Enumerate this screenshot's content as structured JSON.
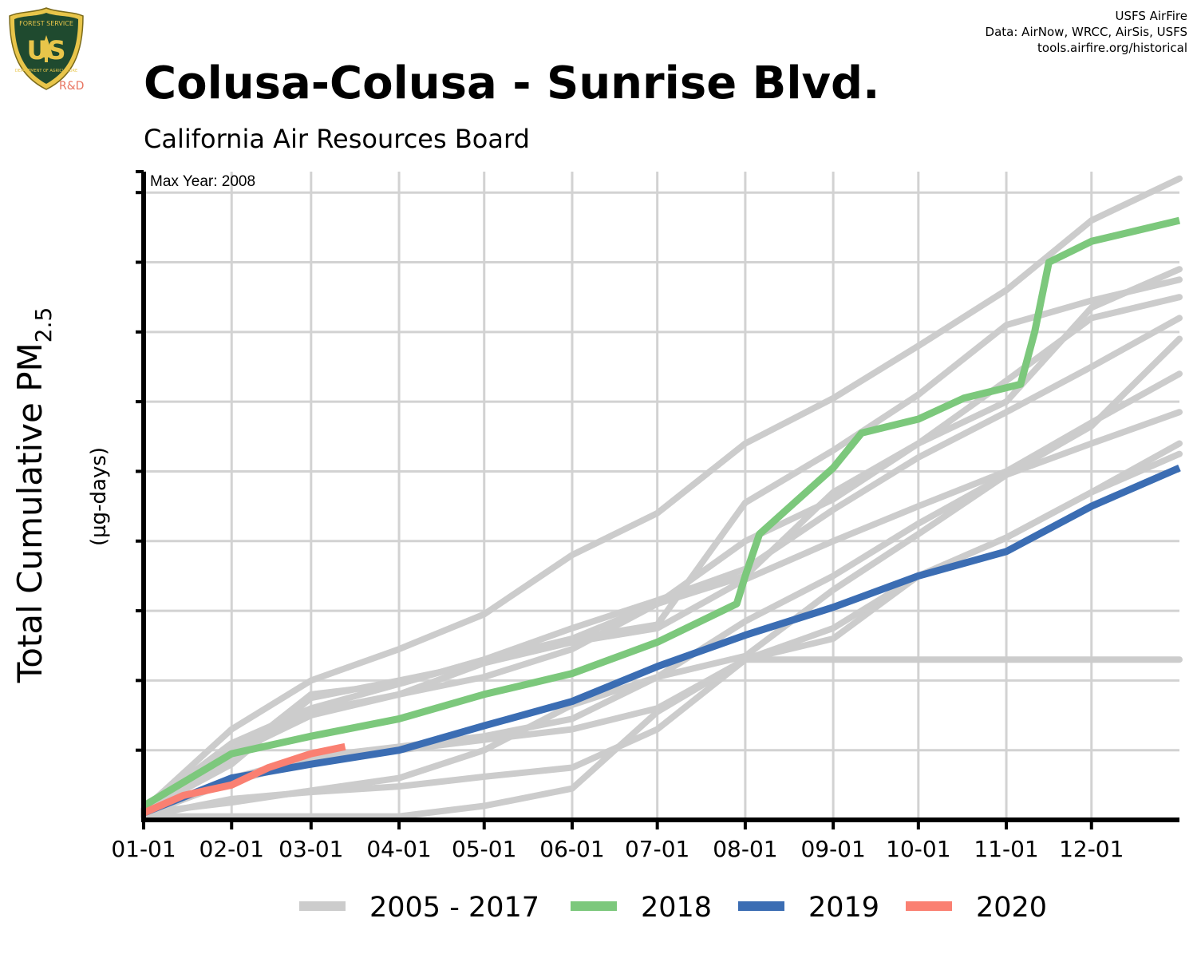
{
  "header": {
    "credit_lines": [
      "USFS AirFire",
      "Data: AirNow, WRCC, AirSis, USFS",
      "tools.airfire.org/historical"
    ],
    "title": "Colusa-Colusa - Sunrise Blvd.",
    "subtitle": "California Air Resources Board",
    "logo_text_top": "FOREST SERVICE",
    "logo_text_main": "US",
    "logo_text_bottom": "DEPARTMENT OF AGRICULTURE",
    "logo_rd": "R&D"
  },
  "colors": {
    "historical": "#cccccc",
    "y2018": "#7cc87c",
    "y2019": "#3b6db3",
    "y2020": "#fa8072",
    "logo_green": "#1f4a2f",
    "logo_gold": "#e8c54a"
  },
  "chart_data": {
    "type": "line",
    "annotation": "Max Year: 2008",
    "ylabel_main": "Total Cumulative PM",
    "ylabel_sub": "2.5",
    "ylabel_units": "(µg-days)",
    "x_tick_labels": [
      "01-01",
      "02-01",
      "03-01",
      "04-01",
      "05-01",
      "06-01",
      "07-01",
      "08-01",
      "09-01",
      "10-01",
      "11-01",
      "12-01"
    ],
    "x_tick_days": [
      1,
      32,
      60,
      91,
      121,
      152,
      182,
      213,
      244,
      274,
      305,
      335
    ],
    "xlim": [
      1,
      366
    ],
    "ylim": [
      0,
      9.3
    ],
    "y_gridlines": [
      1,
      2,
      3,
      4,
      5,
      6,
      7,
      8,
      9
    ],
    "y_axis_labels_shown": false,
    "grid": true,
    "legend_position": "bottom",
    "legend": [
      "2005 - 2017",
      "2018",
      "2019",
      "2020"
    ],
    "historical_series": [
      {
        "x": [
          1,
          32,
          60,
          91,
          121,
          152,
          182,
          213,
          244,
          274,
          305,
          335,
          366
        ],
        "y": [
          0.15,
          1.3,
          2.0,
          2.45,
          2.95,
          3.8,
          4.4,
          5.4,
          6.05,
          6.8,
          7.6,
          8.6,
          9.2
        ]
      },
      {
        "x": [
          1,
          32,
          60,
          91,
          121,
          152,
          182,
          213,
          244,
          274,
          305,
          335,
          366
        ],
        "y": [
          0.15,
          1.0,
          1.55,
          1.8,
          2.25,
          2.6,
          3.1,
          3.5,
          4.7,
          5.4,
          6.0,
          7.35,
          7.9
        ]
      },
      {
        "x": [
          1,
          32,
          60,
          91,
          121,
          152,
          182,
          213,
          244,
          274,
          305,
          335,
          366
        ],
        "y": [
          0.15,
          1.1,
          1.6,
          1.95,
          2.3,
          2.6,
          2.8,
          4.55,
          5.3,
          6.1,
          7.1,
          7.45,
          7.75
        ]
      },
      {
        "x": [
          1,
          32,
          60,
          91,
          121,
          152,
          182,
          213,
          244,
          274,
          305,
          335,
          366
        ],
        "y": [
          0.12,
          0.95,
          1.5,
          1.8,
          2.05,
          2.45,
          3.1,
          4.0,
          4.6,
          5.4,
          6.3,
          7.2,
          7.5
        ]
      },
      {
        "x": [
          1,
          32,
          60,
          91,
          121,
          152,
          182,
          213,
          244,
          274,
          305,
          335,
          366
        ],
        "y": [
          0.12,
          0.9,
          1.8,
          1.95,
          2.3,
          2.75,
          3.15,
          3.6,
          4.45,
          5.2,
          5.85,
          6.5,
          7.2
        ]
      },
      {
        "x": [
          1,
          32,
          60,
          91,
          121,
          152,
          182,
          213,
          244,
          274,
          305,
          335,
          366
        ],
        "y": [
          0.12,
          0.8,
          1.75,
          2.0,
          2.25,
          2.55,
          2.75,
          3.45,
          4.0,
          4.5,
          5.0,
          5.7,
          6.4
        ]
      },
      {
        "x": [
          1,
          32,
          60,
          91,
          121,
          152,
          182,
          213,
          244,
          274,
          305,
          335,
          366
        ],
        "y": [
          0.1,
          0.6,
          0.9,
          1.05,
          1.2,
          1.45,
          2.05,
          2.35,
          3.3,
          4.1,
          4.95,
          5.4,
          5.85
        ]
      },
      {
        "x": [
          1,
          32,
          60,
          91,
          121,
          152,
          182,
          213,
          244,
          274,
          305,
          335,
          366
        ],
        "y": [
          0.08,
          0.55,
          0.85,
          1.0,
          1.15,
          1.3,
          1.6,
          2.3,
          2.6,
          3.5,
          4.05,
          4.7,
          5.4
        ]
      },
      {
        "x": [
          1,
          32,
          60,
          91,
          121,
          152,
          182,
          213,
          244,
          274,
          305,
          335,
          366
        ],
        "y": [
          0.05,
          0.3,
          0.4,
          0.48,
          0.62,
          0.75,
          1.3,
          2.3,
          2.75,
          3.5,
          4.05,
          4.7,
          5.25
        ]
      },
      {
        "x": [
          1,
          32,
          60,
          91,
          121,
          152,
          182,
          213,
          244,
          274,
          305,
          335,
          366
        ],
        "y": [
          0.05,
          0.05,
          0.05,
          0.05,
          0.2,
          0.45,
          1.55,
          2.3,
          2.3,
          2.3,
          2.3,
          2.3,
          2.3
        ]
      },
      {
        "x": [
          1,
          32,
          60,
          91,
          121,
          152,
          182,
          213,
          244,
          274,
          305,
          335,
          366
        ],
        "y": [
          0.1,
          0.25,
          0.42,
          0.6,
          1.0,
          1.65,
          2.05,
          2.85,
          3.5,
          4.25,
          4.95,
          5.65,
          6.9
        ]
      }
    ],
    "series": [
      {
        "name": "2018",
        "x": [
          1,
          32,
          60,
          91,
          121,
          152,
          182,
          210,
          213,
          218,
          244,
          254,
          274,
          290,
          310,
          315,
          320,
          335,
          366
        ],
        "y": [
          0.2,
          0.95,
          1.2,
          1.45,
          1.8,
          2.1,
          2.55,
          3.1,
          3.5,
          4.1,
          5.05,
          5.55,
          5.75,
          6.05,
          6.25,
          7.0,
          8.0,
          8.3,
          8.6
        ]
      },
      {
        "name": "2019",
        "x": [
          1,
          32,
          60,
          91,
          121,
          152,
          182,
          213,
          244,
          274,
          305,
          335,
          366
        ],
        "y": [
          0.1,
          0.6,
          0.8,
          1.0,
          1.35,
          1.7,
          2.2,
          2.65,
          3.05,
          3.5,
          3.85,
          4.5,
          5.05
        ]
      },
      {
        "name": "2020",
        "x": [
          1,
          15,
          32,
          45,
          60,
          72
        ],
        "y": [
          0.1,
          0.35,
          0.5,
          0.75,
          0.95,
          1.05
        ]
      }
    ]
  }
}
